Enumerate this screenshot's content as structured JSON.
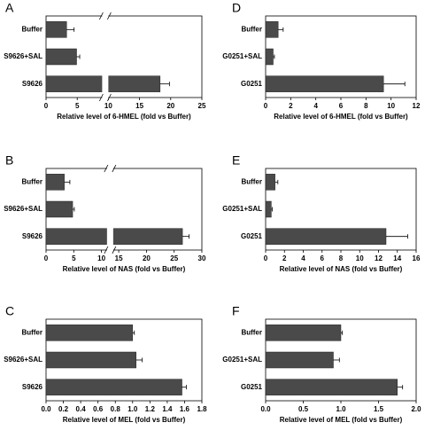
{
  "chart_data": [
    {
      "type": "bar",
      "label": "A",
      "orientation": "horizontal",
      "color": "#4a4a4a",
      "categories": [
        "Buffer",
        "S9626+SAL",
        "S9626"
      ],
      "values": [
        3.3,
        4.9,
        18.3
      ],
      "errors": [
        1.2,
        0.5,
        1.5
      ],
      "xlabel": "Relative level of 6-HMEL (fold vs Buffer)",
      "xlim": [
        0,
        25
      ],
      "xbreak": [
        9,
        10
      ],
      "xticks": [
        0,
        5,
        10,
        15,
        20,
        25
      ]
    },
    {
      "type": "bar",
      "label": "B",
      "orientation": "horizontal",
      "color": "#4a4a4a",
      "categories": [
        "Buffer",
        "S9626+SAL",
        "S9626"
      ],
      "values": [
        3.3,
        4.8,
        26.5
      ],
      "errors": [
        1.0,
        0.3,
        1.2
      ],
      "xlabel": "Relative level of NAS (fold vs Buffer)",
      "xlim": [
        0,
        30
      ],
      "xbreak": [
        11,
        14
      ],
      "xticks": [
        0,
        5,
        10,
        15,
        20,
        25,
        30
      ]
    },
    {
      "type": "bar",
      "label": "C",
      "orientation": "horizontal",
      "color": "#4a4a4a",
      "categories": [
        "Buffer",
        "S9626+SAL",
        "S9626"
      ],
      "values": [
        1.0,
        1.04,
        1.57
      ],
      "errors": [
        0.02,
        0.07,
        0.05
      ],
      "xlabel": "Relative level of MEL (fold vs Buffer)",
      "xlim": [
        0,
        1.8
      ],
      "xticks": [
        {
          "value": 0,
          "label": "0.0"
        },
        0.2,
        0.4,
        0.6,
        0.8,
        {
          "value": 1,
          "label": "1.0"
        },
        1.2,
        1.4,
        1.6,
        1.8
      ]
    },
    {
      "type": "bar",
      "label": "D",
      "orientation": "horizontal",
      "color": "#4a4a4a",
      "categories": [
        "Buffer",
        "G0251+SAL",
        "G0251"
      ],
      "values": [
        1.0,
        0.6,
        9.4
      ],
      "errors": [
        0.4,
        0.1,
        1.7
      ],
      "xlabel": "Relative level of 6-HMEL (fold vs Buffer)",
      "xlim": [
        0,
        12
      ],
      "xticks": [
        0,
        2,
        4,
        6,
        8,
        10,
        12
      ]
    },
    {
      "type": "bar",
      "label": "E",
      "orientation": "horizontal",
      "color": "#4a4a4a",
      "categories": [
        "Buffer",
        "G0251+SAL",
        "G0251"
      ],
      "values": [
        1.0,
        0.6,
        12.8
      ],
      "errors": [
        0.3,
        0.1,
        2.3
      ],
      "xlabel": "Relative level of NAS (fold vs Buffer)",
      "xlim": [
        0,
        16
      ],
      "xticks": [
        0,
        2,
        4,
        6,
        8,
        10,
        12,
        14,
        16
      ]
    },
    {
      "type": "bar",
      "label": "F",
      "orientation": "horizontal",
      "color": "#4a4a4a",
      "categories": [
        "Buffer",
        "G0251+SAL",
        "G0251"
      ],
      "values": [
        1.0,
        0.9,
        1.75
      ],
      "errors": [
        0.02,
        0.08,
        0.07
      ],
      "xlabel": "Relative level of MEL (fold vs Buffer)",
      "xlim": [
        0,
        2
      ],
      "xticks": [
        {
          "value": 0,
          "label": "0.0"
        },
        0.5,
        {
          "value": 1,
          "label": "1.0"
        },
        1.5,
        {
          "value": 2,
          "label": "2.0"
        }
      ]
    }
  ]
}
